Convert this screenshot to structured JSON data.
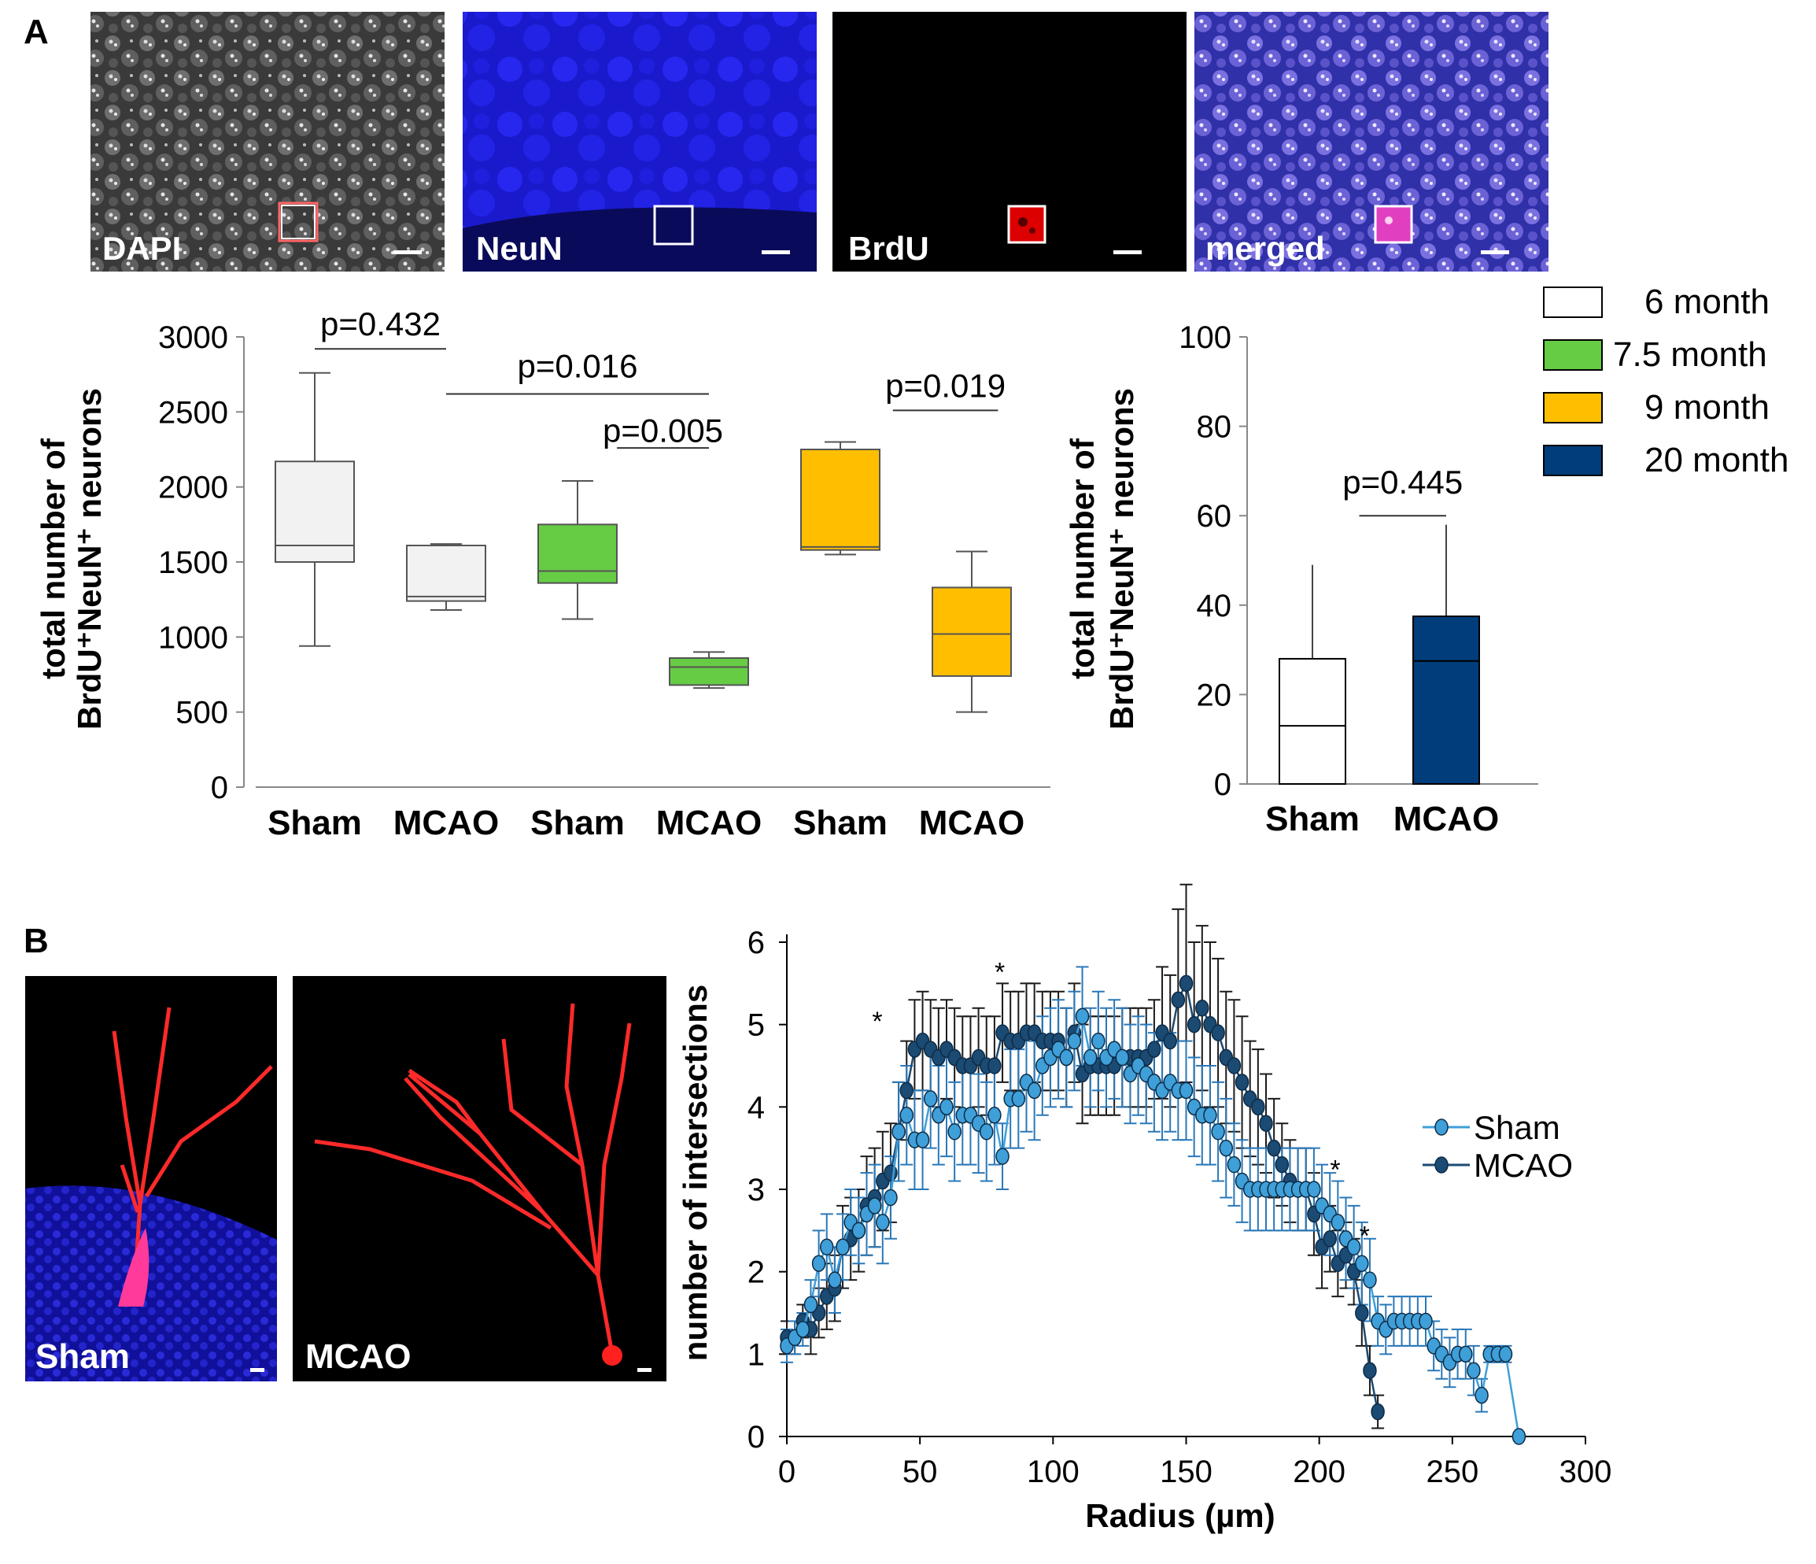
{
  "panel_a": {
    "letter": "A",
    "micrographs": [
      {
        "label": "DAPI",
        "kind": "dapi"
      },
      {
        "label": "NeuN",
        "kind": "neun"
      },
      {
        "label": "BrdU",
        "kind": "brdu"
      },
      {
        "label": "merged",
        "kind": "merged"
      }
    ],
    "legend": [
      {
        "label": "6 month",
        "color": "#ffffff"
      },
      {
        "label": "7.5 month",
        "color": "#66cc44"
      },
      {
        "label": "9 month",
        "color": "#ffbf00"
      },
      {
        "label": "20 month",
        "color": "#003d7a"
      }
    ]
  },
  "panel_b": {
    "letter": "B",
    "micrographs": [
      {
        "label": "Sham",
        "kind": "sham"
      },
      {
        "label": "MCAO",
        "kind": "mcao"
      }
    ]
  },
  "chart_data": [
    {
      "id": "boxplot",
      "type": "box",
      "ylabel_line1": "total number of",
      "ylabel_line2": "BrdU⁺NeuN⁺ neurons",
      "ylim": [
        0,
        3000
      ],
      "yticks": [
        0,
        500,
        1000,
        1500,
        2000,
        2500,
        3000
      ],
      "categories": [
        "Sham",
        "MCAO",
        "Sham",
        "MCAO",
        "Sham",
        "MCAO"
      ],
      "boxes": [
        {
          "group": "6 month",
          "min": 940,
          "q1": 1500,
          "median": 1610,
          "q3": 2170,
          "max": 2760,
          "color": "#f2f2f2"
        },
        {
          "group": "6 month",
          "min": 1180,
          "q1": 1240,
          "median": 1270,
          "q3": 1610,
          "max": 1620,
          "color": "#f2f2f2"
        },
        {
          "group": "7.5 month",
          "min": 1120,
          "q1": 1360,
          "median": 1440,
          "q3": 1750,
          "max": 2040,
          "color": "#66cc44"
        },
        {
          "group": "7.5 month",
          "min": 660,
          "q1": 680,
          "median": 800,
          "q3": 860,
          "max": 900,
          "color": "#66cc44"
        },
        {
          "group": "9 month",
          "min": 1550,
          "q1": 1580,
          "median": 1600,
          "q3": 2250,
          "max": 2300,
          "color": "#ffbf00"
        },
        {
          "group": "9 month",
          "min": 500,
          "q1": 740,
          "median": 1020,
          "q3": 1330,
          "max": 1570,
          "color": "#ffbf00"
        }
      ],
      "annotations": [
        {
          "text": "p=0.432",
          "from": 0,
          "to": 1,
          "y": 2920,
          "label_y": 3010
        },
        {
          "text": "p=0.016",
          "from": 1,
          "to": 3,
          "y": 2620,
          "label_y": 2730
        },
        {
          "text": "p=0.005",
          "from": 2.3,
          "to": 3,
          "y": 2260,
          "label_y": 2300
        },
        {
          "text": "p=0.019",
          "from": 4.4,
          "to": 5.2,
          "y": 2510,
          "label_y": 2600
        }
      ]
    },
    {
      "id": "barplot",
      "type": "bar",
      "ylabel_line1": "total number of",
      "ylabel_line2": "BrdU⁺NeuN⁺ neurons",
      "ylim": [
        0,
        100
      ],
      "yticks": [
        0,
        20,
        40,
        60,
        80,
        100
      ],
      "categories": [
        "Sham",
        "MCAO"
      ],
      "bars": [
        {
          "group": "20 month",
          "mean": 28,
          "median": 13,
          "error_top": 49,
          "color": "#ffffff"
        },
        {
          "group": "20 month",
          "mean": 37.5,
          "median": 27.5,
          "error_top": 58,
          "color": "#003d7a"
        }
      ],
      "annotations": [
        {
          "text": "p=0.445",
          "from": 0.35,
          "to": 1,
          "y": 60,
          "label_y": 65
        }
      ]
    },
    {
      "id": "sholl",
      "type": "line",
      "xlabel": "Radius (µm)",
      "ylabel": "number of intersections",
      "xlim": [
        0,
        300
      ],
      "ylim": [
        0,
        6
      ],
      "xticks": [
        0,
        50,
        100,
        150,
        200,
        250,
        300
      ],
      "yticks": [
        0,
        1,
        2,
        3,
        4,
        5,
        6
      ],
      "series": [
        {
          "name": "Sham",
          "color": "#3f9fd8",
          "x": [
            0,
            3,
            6,
            9,
            12,
            15,
            18,
            21,
            24,
            27,
            30,
            33,
            36,
            39,
            42,
            45,
            48,
            51,
            54,
            57,
            60,
            63,
            66,
            69,
            72,
            75,
            78,
            81,
            84,
            87,
            90,
            93,
            96,
            99,
            102,
            105,
            108,
            111,
            114,
            117,
            120,
            123,
            126,
            129,
            132,
            135,
            138,
            141,
            144,
            147,
            150,
            153,
            156,
            159,
            162,
            165,
            168,
            171,
            174,
            177,
            180,
            183,
            186,
            189,
            192,
            195,
            198,
            201,
            204,
            207,
            210,
            213,
            216,
            219,
            222,
            225,
            228,
            231,
            234,
            237,
            240,
            243,
            246,
            249,
            252,
            255,
            258,
            261,
            264,
            267,
            270,
            275
          ],
          "y": [
            1.1,
            1.2,
            1.3,
            1.6,
            2.1,
            2.3,
            1.9,
            2.3,
            2.6,
            2.5,
            2.7,
            2.8,
            2.6,
            2.9,
            3.7,
            3.9,
            3.6,
            3.6,
            4.1,
            3.9,
            4.0,
            3.7,
            3.9,
            3.9,
            3.8,
            3.7,
            3.9,
            3.4,
            4.1,
            4.1,
            4.3,
            4.2,
            4.5,
            4.6,
            4.7,
            4.6,
            4.8,
            5.1,
            4.6,
            4.8,
            4.6,
            4.7,
            4.6,
            4.4,
            4.5,
            4.4,
            4.3,
            4.2,
            4.3,
            4.2,
            4.2,
            4.0,
            3.9,
            3.9,
            3.7,
            3.5,
            3.3,
            3.1,
            3.0,
            3.0,
            3.0,
            3.0,
            3.0,
            3.0,
            3.0,
            3.0,
            3.0,
            2.8,
            2.7,
            2.6,
            2.4,
            2.3,
            2.1,
            1.9,
            1.4,
            1.3,
            1.4,
            1.4,
            1.4,
            1.4,
            1.4,
            1.1,
            1.0,
            0.9,
            1.0,
            1.0,
            0.8,
            0.5,
            1.0,
            1.0,
            1.0,
            0.0
          ],
          "err": [
            0.2,
            0.2,
            0.2,
            0.3,
            0.4,
            0.4,
            0.4,
            0.4,
            0.4,
            0.4,
            0.5,
            0.5,
            0.5,
            0.5,
            0.6,
            0.6,
            0.6,
            0.6,
            0.6,
            0.6,
            0.6,
            0.6,
            0.6,
            0.6,
            0.6,
            0.6,
            0.6,
            0.4,
            0.6,
            0.6,
            0.6,
            0.6,
            0.6,
            0.6,
            0.6,
            0.6,
            0.6,
            0.6,
            0.6,
            0.6,
            0.6,
            0.6,
            0.6,
            0.6,
            0.6,
            0.6,
            0.6,
            0.6,
            0.6,
            0.6,
            0.6,
            0.6,
            0.6,
            0.6,
            0.6,
            0.6,
            0.5,
            0.5,
            0.5,
            0.5,
            0.5,
            0.5,
            0.5,
            0.5,
            0.5,
            0.5,
            0.5,
            0.5,
            0.5,
            0.5,
            0.5,
            0.5,
            0.5,
            0.5,
            0.3,
            0.3,
            0.3,
            0.3,
            0.3,
            0.3,
            0.3,
            0.3,
            0.3,
            0.3,
            0.3,
            0.3,
            0.3,
            0.2,
            0.1,
            0.1,
            0.1,
            0.0
          ]
        },
        {
          "name": "MCAO",
          "color": "#1b4a73",
          "x": [
            0,
            3,
            6,
            9,
            12,
            15,
            18,
            21,
            24,
            27,
            30,
            33,
            36,
            39,
            42,
            45,
            48,
            51,
            54,
            57,
            60,
            63,
            66,
            69,
            72,
            75,
            78,
            81,
            84,
            87,
            90,
            93,
            96,
            99,
            102,
            105,
            108,
            111,
            114,
            117,
            120,
            123,
            126,
            129,
            132,
            135,
            138,
            141,
            144,
            147,
            150,
            153,
            156,
            159,
            162,
            165,
            168,
            171,
            174,
            177,
            180,
            183,
            186,
            189,
            192,
            195,
            198,
            201,
            204,
            207,
            210,
            213,
            216,
            219,
            222
          ],
          "y": [
            1.2,
            1.2,
            1.4,
            1.3,
            1.5,
            1.7,
            1.8,
            2.3,
            2.4,
            2.5,
            2.8,
            2.9,
            3.1,
            3.2,
            3.7,
            4.2,
            4.7,
            4.8,
            4.7,
            4.6,
            4.7,
            4.6,
            4.5,
            4.5,
            4.6,
            4.5,
            4.5,
            4.9,
            4.8,
            4.8,
            4.9,
            4.9,
            4.8,
            4.8,
            4.8,
            4.6,
            4.9,
            4.4,
            4.5,
            4.5,
            4.5,
            4.5,
            4.6,
            4.6,
            4.6,
            4.6,
            4.7,
            4.9,
            4.8,
            5.3,
            5.5,
            5.0,
            5.2,
            5.0,
            4.9,
            4.6,
            4.5,
            4.3,
            4.1,
            4.0,
            3.8,
            3.5,
            3.3,
            3.1,
            3.0,
            3.0,
            2.7,
            2.3,
            2.4,
            2.1,
            2.2,
            2.0,
            1.5,
            0.8,
            0.3
          ],
          "err": [
            0.2,
            0.2,
            0.2,
            0.3,
            0.3,
            0.4,
            0.4,
            0.5,
            0.5,
            0.5,
            0.6,
            0.6,
            0.6,
            0.6,
            0.6,
            0.6,
            0.6,
            0.6,
            0.6,
            0.6,
            0.6,
            0.6,
            0.6,
            0.6,
            0.6,
            0.6,
            0.6,
            0.6,
            0.6,
            0.6,
            0.6,
            0.6,
            0.6,
            0.6,
            0.6,
            0.6,
            0.6,
            0.6,
            0.6,
            0.6,
            0.6,
            0.6,
            0.6,
            0.6,
            0.6,
            0.6,
            0.6,
            0.8,
            0.8,
            1.1,
            1.2,
            1.0,
            1.0,
            1.0,
            0.9,
            0.8,
            0.8,
            0.8,
            0.7,
            0.7,
            0.6,
            0.6,
            0.5,
            0.5,
            0.5,
            0.5,
            0.5,
            0.5,
            0.4,
            0.4,
            0.4,
            0.4,
            0.4,
            0.3,
            0.2
          ]
        }
      ],
      "significance": [
        {
          "text": "*",
          "x": 34,
          "y": 5.1
        },
        {
          "text": "*",
          "x": 80,
          "y": 5.7
        },
        {
          "text": "*",
          "x": 206,
          "y": 3.3
        },
        {
          "text": "*",
          "x": 217,
          "y": 2.5
        }
      ],
      "legend_placement": "right"
    }
  ]
}
